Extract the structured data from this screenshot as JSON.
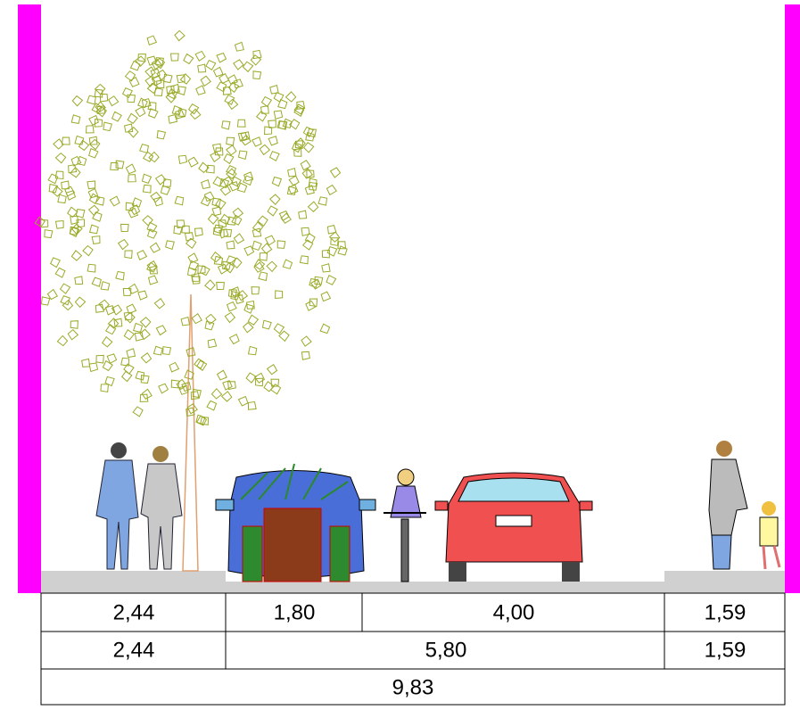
{
  "table": {
    "rows": [
      [
        "2,44",
        "1,80",
        "4,00",
        "1,59"
      ],
      [
        "2,44",
        "5,80",
        "1,59"
      ],
      [
        "9,83"
      ]
    ]
  }
}
